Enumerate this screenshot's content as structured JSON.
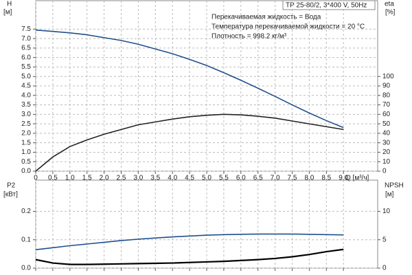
{
  "chart_data": [
    {
      "type": "line",
      "title": "TP 25-80/2, 3*400 V, 50Hz",
      "annotations": [
        "Перекачиваемая жидкость = Вода",
        "Температура перекачиваемой жидкости = 20 °C",
        "Плотность = 998.2 кг/м³"
      ],
      "ylabel": "H",
      "yunit": "[м]",
      "y2label": "eta",
      "y2unit": "[%]",
      "xlabel": "Q [м³/ч]",
      "grid": true,
      "x": [
        0,
        0.5,
        1,
        1.5,
        2,
        2.5,
        3,
        3.5,
        4,
        4.5,
        5,
        5.5,
        6,
        6.5,
        7,
        7.5,
        8,
        8.5,
        9
      ],
      "series": [
        {
          "color": "#1f4e8c",
          "axis": "y",
          "values": [
            7.45,
            7.38,
            7.3,
            7.2,
            7.05,
            6.9,
            6.7,
            6.45,
            6.2,
            5.9,
            5.58,
            5.2,
            4.8,
            4.38,
            3.95,
            3.5,
            3.07,
            2.67,
            2.3
          ]
        },
        {
          "color": "#222222",
          "axis": "y2",
          "values": [
            0,
            15,
            26,
            33,
            39,
            44,
            49,
            52,
            55,
            57.5,
            59,
            60,
            59.5,
            58,
            56,
            53,
            50,
            47,
            44
          ]
        }
      ],
      "xlim": [
        0,
        10
      ],
      "xticks": [
        0,
        0.5,
        {
          "value": 1,
          "label": "1.0"
        },
        1.5,
        {
          "value": 2,
          "label": "2.0"
        },
        2.5,
        {
          "value": 3,
          "label": "3.0"
        },
        3.5,
        {
          "value": 4,
          "label": "4.0"
        },
        4.5,
        {
          "value": 5,
          "label": "5.0"
        },
        5.5,
        {
          "value": 6,
          "label": "6.0"
        },
        6.5,
        {
          "value": 7,
          "label": "7.0"
        },
        7.5,
        {
          "value": 8,
          "label": "8.0"
        },
        8.5,
        {
          "value": 9,
          "label": "9.0"
        }
      ],
      "ylim": [
        0,
        9
      ],
      "yticks": [
        {
          "value": 0,
          "label": "0.0"
        },
        0.5,
        {
          "value": 1,
          "label": "1.0"
        },
        1.5,
        {
          "value": 2,
          "label": "2.0"
        },
        2.5,
        {
          "value": 3,
          "label": "3.0"
        },
        3.5,
        {
          "value": 4,
          "label": "4.0"
        },
        4.5,
        {
          "value": 5,
          "label": "5.0"
        },
        5.5,
        {
          "value": 6,
          "label": "6.0"
        },
        6.5,
        {
          "value": 7,
          "label": "7.0"
        },
        7.5
      ],
      "y2lim": [
        0,
        180
      ],
      "y2ticks": [
        0,
        10,
        20,
        30,
        40,
        50,
        60,
        70,
        80,
        90,
        100
      ]
    },
    {
      "type": "line",
      "ylabel": "P2",
      "yunit": "[кВт]",
      "y2label": "NPSH",
      "y2unit": "[м]",
      "grid": true,
      "x": [
        0,
        0.5,
        1,
        1.5,
        2,
        2.5,
        3,
        3.5,
        4,
        4.5,
        5,
        5.5,
        6,
        6.5,
        7,
        7.5,
        8,
        8.5,
        9
      ],
      "series": [
        {
          "color": "#1f4e8c",
          "axis": "y",
          "values": [
            0.065,
            0.072,
            0.079,
            0.085,
            0.091,
            0.097,
            0.102,
            0.106,
            0.11,
            0.113,
            0.116,
            0.118,
            0.119,
            0.12,
            0.12,
            0.12,
            0.119,
            0.118,
            0.117
          ]
        },
        {
          "color": "#000000",
          "axis": "y2",
          "values": [
            1.5,
            0.9,
            0.65,
            0.65,
            0.7,
            0.75,
            0.8,
            0.85,
            0.9,
            1.0,
            1.1,
            1.2,
            1.35,
            1.5,
            1.7,
            2.0,
            2.4,
            2.9,
            3.3
          ]
        }
      ],
      "xlim": [
        0,
        10
      ],
      "xticks": [
        0,
        0.5,
        1,
        1.5,
        2,
        2.5,
        3,
        3.5,
        4,
        4.5,
        5,
        5.5,
        6,
        6.5,
        7,
        7.5,
        8,
        8.5,
        9
      ],
      "ylim": [
        0,
        0.31
      ],
      "yticks": [
        {
          "value": 0,
          "label": "0.0"
        },
        0.1,
        0.2
      ],
      "y2lim": [
        0,
        15.5
      ],
      "y2ticks": [
        0,
        5,
        10
      ]
    }
  ]
}
